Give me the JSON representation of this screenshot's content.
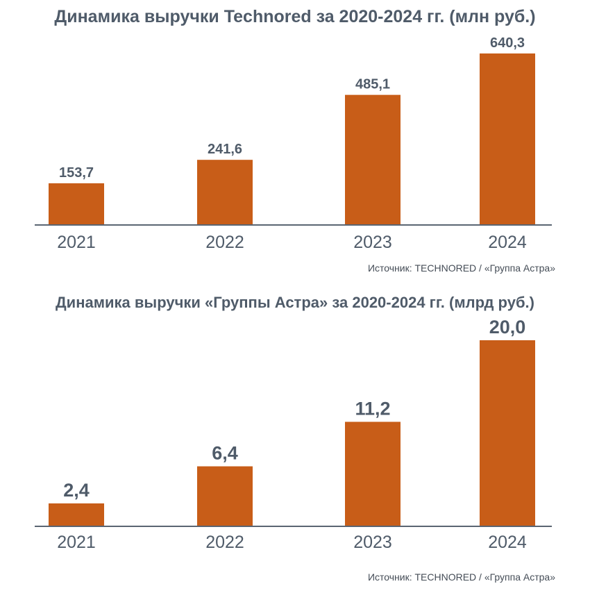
{
  "chart_data": [
    {
      "type": "bar",
      "title": "Динамика выручки Technored за 2020-2024 гг. (млн руб.)",
      "categories": [
        "2021",
        "2022",
        "2023",
        "2024"
      ],
      "values": [
        153.7,
        241.6,
        485.1,
        640.3
      ],
      "value_labels": [
        "153,7",
        "241,6",
        "485,1",
        "640,3"
      ],
      "ylim": [
        0,
        640.3
      ],
      "grid": false,
      "legend": "none",
      "source": "Источник: TECHNORED / «Группа Астра»"
    },
    {
      "type": "bar",
      "title": "Динамика выручки «Группы Астра» за 2020-2024 гг. (млрд руб.)",
      "categories": [
        "2021",
        "2022",
        "2023",
        "2024"
      ],
      "values": [
        2.4,
        6.4,
        11.2,
        20.0
      ],
      "value_labels": [
        "2,4",
        "6,4",
        "11,2",
        "20,0"
      ],
      "ylim": [
        0,
        20.0
      ],
      "grid": false,
      "legend": "none",
      "source": "Источник: TECHNORED / «Группа Астра»"
    }
  ],
  "colors": {
    "bar": "#c85d18",
    "text": "#4f5b69",
    "axis": "#5a6572"
  }
}
